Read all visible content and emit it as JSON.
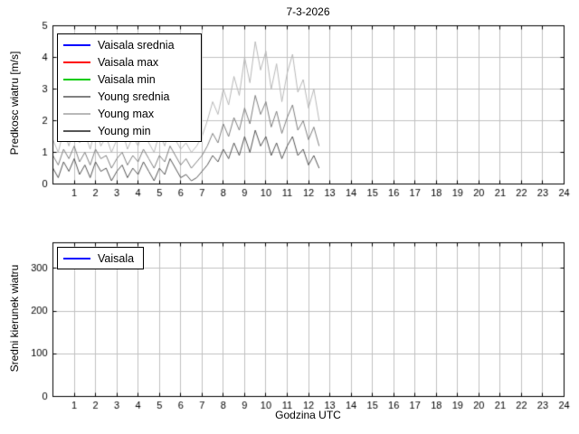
{
  "figure": {
    "background": "#ffffff",
    "grid_color": "#c0c0c0",
    "axis_color": "#000000"
  },
  "chart_data": [
    {
      "type": "line",
      "title": "7-3-2026",
      "ylabel": "Predkosc wiatru [m/s]",
      "xlabel": "",
      "xlim": [
        0,
        24
      ],
      "ylim": [
        0,
        5
      ],
      "xticks": [
        1,
        2,
        3,
        4,
        5,
        6,
        7,
        8,
        9,
        10,
        11,
        12,
        13,
        14,
        15,
        16,
        17,
        18,
        19,
        20,
        21,
        22,
        23,
        24
      ],
      "yticks": [
        0,
        1,
        2,
        3,
        4,
        5
      ],
      "grid": true,
      "legend_position": "upper-left",
      "series": [
        {
          "name": "Vaisala srednia",
          "color": "#0000ff",
          "x": [
            0,
            12.5
          ],
          "values": [
            0,
            0
          ]
        },
        {
          "name": "Vaisala max",
          "color": "#ff0000",
          "x": [
            0,
            12.5
          ],
          "values": [
            0,
            0
          ]
        },
        {
          "name": "Vaisala min",
          "color": "#00cc00",
          "x": [
            0,
            12.5
          ],
          "values": [
            0,
            0
          ]
        },
        {
          "name": "Young srednia",
          "color": "#808080",
          "x_start": 0,
          "x_step": 0.25,
          "values": [
            0.9,
            0.6,
            1.1,
            0.8,
            1.2,
            0.7,
            1.0,
            0.6,
            1.1,
            0.8,
            0.9,
            0.5,
            0.8,
            1.0,
            0.6,
            0.9,
            0.7,
            1.1,
            0.8,
            0.5,
            0.9,
            0.7,
            1.2,
            0.9,
            0.6,
            0.8,
            0.5,
            0.7,
            0.9,
            1.2,
            1.6,
            1.3,
            1.9,
            1.5,
            2.1,
            1.7,
            2.4,
            1.9,
            2.8,
            2.2,
            2.6,
            1.8,
            2.3,
            1.6,
            2.1,
            2.5,
            1.7,
            2.0,
            1.4,
            1.8,
            1.2
          ]
        },
        {
          "name": "Young max",
          "color": "#b8b8b8",
          "x_start": 0,
          "x_step": 0.25,
          "values": [
            1.4,
            1.0,
            1.7,
            1.2,
            1.9,
            1.3,
            1.6,
            1.1,
            1.8,
            1.2,
            1.5,
            1.0,
            1.4,
            1.7,
            1.1,
            1.5,
            1.2,
            1.8,
            1.3,
            1.0,
            1.6,
            1.2,
            1.9,
            1.4,
            1.1,
            1.3,
            1.0,
            1.2,
            1.5,
            2.0,
            2.6,
            2.2,
            3.0,
            2.5,
            3.4,
            2.8,
            4.0,
            3.2,
            4.5,
            3.6,
            4.2,
            3.0,
            3.8,
            2.6,
            3.5,
            4.1,
            2.9,
            3.3,
            2.4,
            3.0,
            2.0
          ]
        },
        {
          "name": "Young min",
          "color": "#555555",
          "x_start": 0,
          "x_step": 0.25,
          "values": [
            0.5,
            0.2,
            0.7,
            0.4,
            0.8,
            0.3,
            0.6,
            0.2,
            0.7,
            0.4,
            0.5,
            0.1,
            0.4,
            0.6,
            0.2,
            0.5,
            0.3,
            0.7,
            0.4,
            0.1,
            0.5,
            0.3,
            0.8,
            0.5,
            0.2,
            0.3,
            0.1,
            0.2,
            0.4,
            0.6,
            0.9,
            0.7,
            1.1,
            0.8,
            1.3,
            0.9,
            1.5,
            1.0,
            1.7,
            1.2,
            1.5,
            0.9,
            1.3,
            0.8,
            1.2,
            1.5,
            0.9,
            1.1,
            0.6,
            0.9,
            0.5
          ]
        }
      ]
    },
    {
      "type": "line",
      "title": "",
      "ylabel": "Sredni kierunek wiatru",
      "xlabel": "Godzina UTC",
      "xlim": [
        0,
        24
      ],
      "ylim": [
        0,
        360
      ],
      "xticks": [
        1,
        2,
        3,
        4,
        5,
        6,
        7,
        8,
        9,
        10,
        11,
        12,
        13,
        14,
        15,
        16,
        17,
        18,
        19,
        20,
        21,
        22,
        23,
        24
      ],
      "yticks": [
        0,
        100,
        200,
        300
      ],
      "grid": true,
      "legend_position": "upper-left",
      "series": [
        {
          "name": "Vaisala",
          "color": "#0000ff",
          "x": [
            0,
            12.5
          ],
          "values": [
            0,
            0
          ]
        }
      ]
    }
  ]
}
